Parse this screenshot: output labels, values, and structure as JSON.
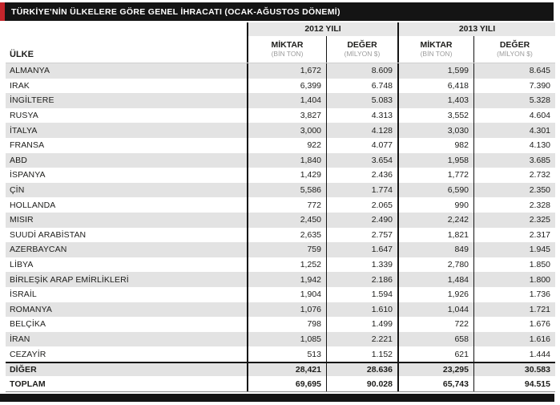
{
  "title": "TÜRKİYE'NİN ÜLKELERE GÖRE GENEL İHRACATI (OCAK-AĞUSTOS DÖNEMİ)",
  "header": {
    "country_label": "ÜLKE",
    "years": [
      {
        "label": "2012 YILI",
        "sub": [
          {
            "label": "MİKTAR",
            "unit": "(BİN TON)"
          },
          {
            "label": "DEĞER",
            "unit": "(MİLYON $)"
          }
        ]
      },
      {
        "label": "2013 YILI",
        "sub": [
          {
            "label": "MİKTAR",
            "unit": "(BİN TON)"
          },
          {
            "label": "DEĞER",
            "unit": "(MİLYON $)"
          }
        ]
      }
    ]
  },
  "emphasis_rows": [
    "DİĞER",
    "TOPLAM"
  ],
  "heavy_rule_before": "DİĞER",
  "colors": {
    "accent_red": "#c4252b",
    "bar_black": "#141414",
    "row_stripe": "#e3e3e3",
    "year_band": "#e7e7e7",
    "unit_text": "#9c9c9c",
    "text": "#1d1d1b"
  },
  "chart_data": {
    "type": "table",
    "title": "TÜRKİYE'NİN ÜLKELERE GÖRE GENEL İHRACATI (OCAK-AĞUSTOS DÖNEMİ)",
    "columns": [
      "ÜLKE",
      "2012 YILI MİKTAR (BİN TON)",
      "2012 YILI DEĞER (MİLYON $)",
      "2013 YILI MİKTAR (BİN TON)",
      "2013 YILI DEĞER (MİLYON $)"
    ],
    "rows": [
      [
        "ALMANYA",
        "1,672",
        "8.609",
        "1,599",
        "8.645"
      ],
      [
        "IRAK",
        "6,399",
        "6.748",
        "6,418",
        "7.390"
      ],
      [
        "İNGİLTERE",
        "1,404",
        "5.083",
        "1,403",
        "5.328"
      ],
      [
        "RUSYA",
        "3,827",
        "4.313",
        "3,552",
        "4.604"
      ],
      [
        "İTALYA",
        "3,000",
        "4.128",
        "3,030",
        "4.301"
      ],
      [
        "FRANSA",
        "922",
        "4.077",
        "982",
        "4.130"
      ],
      [
        "ABD",
        "1,840",
        "3.654",
        "1,958",
        "3.685"
      ],
      [
        "İSPANYA",
        "1,429",
        "2.436",
        "1,772",
        "2.732"
      ],
      [
        "ÇİN",
        "5,586",
        "1.774",
        "6,590",
        "2.350"
      ],
      [
        "HOLLANDA",
        "772",
        "2.065",
        "990",
        "2.328"
      ],
      [
        "MISIR",
        "2,450",
        "2.490",
        "2,242",
        "2.325"
      ],
      [
        "SUUDİ ARABİSTAN",
        "2,635",
        "2.757",
        "1,821",
        "2.317"
      ],
      [
        "AZERBAYCAN",
        "759",
        "1.647",
        "849",
        "1.945"
      ],
      [
        "LİBYA",
        "1,252",
        "1.339",
        "2,780",
        "1.850"
      ],
      [
        "BİRLEŞİK ARAP EMİRLİKLERİ",
        "1,942",
        "2.186",
        "1,484",
        "1.800"
      ],
      [
        "İSRAİL",
        "1,904",
        "1.594",
        "1,926",
        "1.736"
      ],
      [
        "ROMANYA",
        "1,076",
        "1.610",
        "1,044",
        "1.721"
      ],
      [
        "BELÇİKA",
        "798",
        "1.499",
        "722",
        "1.676"
      ],
      [
        "İRAN",
        "1,085",
        "2.221",
        "658",
        "1.616"
      ],
      [
        "CEZAYİR",
        "513",
        "1.152",
        "621",
        "1.444"
      ],
      [
        "DİĞER",
        "28,421",
        "28.636",
        "23,295",
        "30.583"
      ],
      [
        "TOPLAM",
        "69,695",
        "90.028",
        "65,743",
        "94.515"
      ]
    ]
  }
}
